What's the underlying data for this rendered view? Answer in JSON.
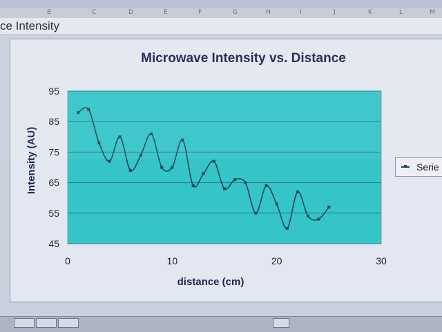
{
  "spreadsheet": {
    "column_headers": [
      "B",
      "C",
      "D",
      "E",
      "F",
      "G",
      "H",
      "I",
      "J",
      "K",
      "L",
      "M"
    ],
    "cell_text": "ce Intensity"
  },
  "colors": {
    "plot_background": "#35c4c8",
    "line": "#1a4a52",
    "gridline": "#1f7f86"
  },
  "chart_data": {
    "type": "line",
    "title": "Microwave Intensity vs. Distance",
    "xlabel": "distance (cm)",
    "ylabel": "Intensity (AU)",
    "xlim": [
      0,
      30
    ],
    "ylim": [
      45,
      95
    ],
    "xticks": [
      0,
      10,
      20,
      30
    ],
    "yticks": [
      45,
      55,
      65,
      75,
      85,
      95
    ],
    "grid": "horizontal",
    "smooth": true,
    "legend": {
      "position": "right",
      "entries": [
        "Serie"
      ]
    },
    "series": [
      {
        "name": "Serie",
        "x": [
          1,
          2,
          3,
          4,
          5,
          6,
          7,
          8,
          9,
          10,
          11,
          12,
          13,
          14,
          15,
          16,
          17,
          18,
          19,
          20,
          21,
          22,
          23,
          24,
          25
        ],
        "y": [
          88,
          89,
          78,
          72,
          80,
          69,
          74,
          81,
          70,
          70,
          79,
          64,
          68,
          72,
          63,
          66,
          65,
          55,
          64,
          58,
          50,
          62,
          54,
          53,
          57
        ]
      }
    ]
  }
}
